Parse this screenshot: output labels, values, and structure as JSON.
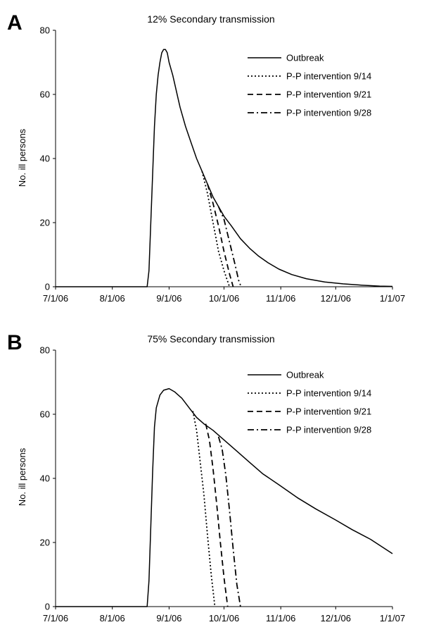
{
  "chart_data": [
    {
      "panel_label": "A",
      "type": "line",
      "title": "12% Secondary transmission",
      "ylabel": "No. ill persons",
      "xlabel": "",
      "ylim": [
        0,
        80
      ],
      "yticks": [
        0,
        20,
        40,
        60,
        80
      ],
      "xlim": [
        "2006-07-01",
        "2007-01-01"
      ],
      "xticks": [
        "7/1/06",
        "8/1/06",
        "9/1/06",
        "10/1/06",
        "11/1/06",
        "12/1/06",
        "1/1/07"
      ],
      "grid": false,
      "legend_position": "top-right",
      "series": [
        {
          "name": "Outbreak",
          "style": "solid",
          "points": [
            [
              "2006-07-01",
              0
            ],
            [
              "2006-08-20",
              0
            ],
            [
              "2006-08-21",
              5
            ],
            [
              "2006-08-22",
              20
            ],
            [
              "2006-08-23",
              35
            ],
            [
              "2006-08-24",
              50
            ],
            [
              "2006-08-25",
              60
            ],
            [
              "2006-08-26",
              66
            ],
            [
              "2006-08-27",
              70
            ],
            [
              "2006-08-28",
              73
            ],
            [
              "2006-08-29",
              74
            ],
            [
              "2006-08-30",
              74
            ],
            [
              "2006-08-31",
              73
            ],
            [
              "2006-09-01",
              70
            ],
            [
              "2006-09-03",
              66
            ],
            [
              "2006-09-05",
              61
            ],
            [
              "2006-09-07",
              56
            ],
            [
              "2006-09-10",
              50
            ],
            [
              "2006-09-13",
              45
            ],
            [
              "2006-09-16",
              40
            ],
            [
              "2006-09-19",
              36
            ],
            [
              "2006-09-22",
              32
            ],
            [
              "2006-09-25",
              28
            ],
            [
              "2006-09-28",
              25
            ],
            [
              "2006-10-01",
              22
            ],
            [
              "2006-10-05",
              19
            ],
            [
              "2006-10-10",
              15
            ],
            [
              "2006-10-15",
              12
            ],
            [
              "2006-10-20",
              9.5
            ],
            [
              "2006-10-25",
              7.5
            ],
            [
              "2006-10-31",
              5.5
            ],
            [
              "2006-11-07",
              3.8
            ],
            [
              "2006-11-15",
              2.5
            ],
            [
              "2006-11-25",
              1.5
            ],
            [
              "2006-12-05",
              0.9
            ],
            [
              "2006-12-15",
              0.5
            ],
            [
              "2006-12-25",
              0.2
            ],
            [
              "2007-01-01",
              0.1
            ]
          ]
        },
        {
          "name": "P-P intervention 9/14",
          "style": "dotted",
          "points": [
            [
              "2006-09-19",
              36
            ],
            [
              "2006-09-22",
              29
            ],
            [
              "2006-09-25",
              20
            ],
            [
              "2006-09-28",
              11
            ],
            [
              "2006-10-01",
              5
            ],
            [
              "2006-10-04",
              0
            ]
          ]
        },
        {
          "name": "P-P intervention 9/21",
          "style": "dashed",
          "points": [
            [
              "2006-09-22",
              32
            ],
            [
              "2006-09-25",
              26
            ],
            [
              "2006-09-28",
              19
            ],
            [
              "2006-10-01",
              11
            ],
            [
              "2006-10-04",
              4
            ],
            [
              "2006-10-06",
              0
            ]
          ]
        },
        {
          "name": "P-P intervention 9/28",
          "style": "dashdot",
          "points": [
            [
              "2006-09-28",
              25
            ],
            [
              "2006-10-01",
              21
            ],
            [
              "2006-10-04",
              14
            ],
            [
              "2006-10-07",
              7
            ],
            [
              "2006-10-09",
              2
            ],
            [
              "2006-10-10",
              0.5
            ]
          ]
        }
      ]
    },
    {
      "panel_label": "B",
      "type": "line",
      "title": "75% Secondary transmission",
      "ylabel": "No. ill persons",
      "xlabel": "",
      "ylim": [
        0,
        80
      ],
      "yticks": [
        0,
        20,
        40,
        60,
        80
      ],
      "xlim": [
        "2006-07-01",
        "2007-01-01"
      ],
      "xticks": [
        "7/1/06",
        "8/1/06",
        "9/1/06",
        "10/1/06",
        "11/1/06",
        "12/1/06",
        "1/1/07"
      ],
      "grid": false,
      "legend_position": "top-right",
      "series": [
        {
          "name": "Outbreak",
          "style": "solid",
          "points": [
            [
              "2006-07-01",
              0
            ],
            [
              "2006-08-20",
              0
            ],
            [
              "2006-08-21",
              8
            ],
            [
              "2006-08-22",
              25
            ],
            [
              "2006-08-23",
              42
            ],
            [
              "2006-08-24",
              56
            ],
            [
              "2006-08-25",
              62
            ],
            [
              "2006-08-27",
              66
            ],
            [
              "2006-08-29",
              67.5
            ],
            [
              "2006-09-01",
              68
            ],
            [
              "2006-09-04",
              67
            ],
            [
              "2006-09-08",
              65
            ],
            [
              "2006-09-12",
              62
            ],
            [
              "2006-09-16",
              59
            ],
            [
              "2006-09-20",
              57
            ],
            [
              "2006-09-25",
              55
            ],
            [
              "2006-10-01",
              52
            ],
            [
              "2006-10-08",
              48.5
            ],
            [
              "2006-10-15",
              45
            ],
            [
              "2006-10-22",
              41.5
            ],
            [
              "2006-10-31",
              38
            ],
            [
              "2006-11-10",
              34
            ],
            [
              "2006-11-20",
              30.5
            ],
            [
              "2006-12-01",
              27
            ],
            [
              "2006-12-10",
              24
            ],
            [
              "2006-12-20",
              21
            ],
            [
              "2007-01-01",
              16.5
            ]
          ]
        },
        {
          "name": "P-P intervention 9/14",
          "style": "dotted",
          "points": [
            [
              "2006-09-14",
              61
            ],
            [
              "2006-09-16",
              55
            ],
            [
              "2006-09-18",
              45
            ],
            [
              "2006-09-20",
              35
            ],
            [
              "2006-09-22",
              22
            ],
            [
              "2006-09-24",
              10
            ],
            [
              "2006-09-26",
              0
            ]
          ]
        },
        {
          "name": "P-P intervention 9/21",
          "style": "dashed",
          "points": [
            [
              "2006-09-21",
              57
            ],
            [
              "2006-09-23",
              52
            ],
            [
              "2006-09-25",
              43
            ],
            [
              "2006-09-27",
              32
            ],
            [
              "2006-09-29",
              20
            ],
            [
              "2006-10-01",
              9
            ],
            [
              "2006-10-03",
              0
            ]
          ]
        },
        {
          "name": "P-P intervention 9/28",
          "style": "dashdot",
          "points": [
            [
              "2006-09-28",
              53
            ],
            [
              "2006-09-30",
              49
            ],
            [
              "2006-10-02",
              41
            ],
            [
              "2006-10-04",
              30
            ],
            [
              "2006-10-06",
              18
            ],
            [
              "2006-10-08",
              7
            ],
            [
              "2006-10-10",
              0
            ]
          ]
        }
      ]
    }
  ]
}
